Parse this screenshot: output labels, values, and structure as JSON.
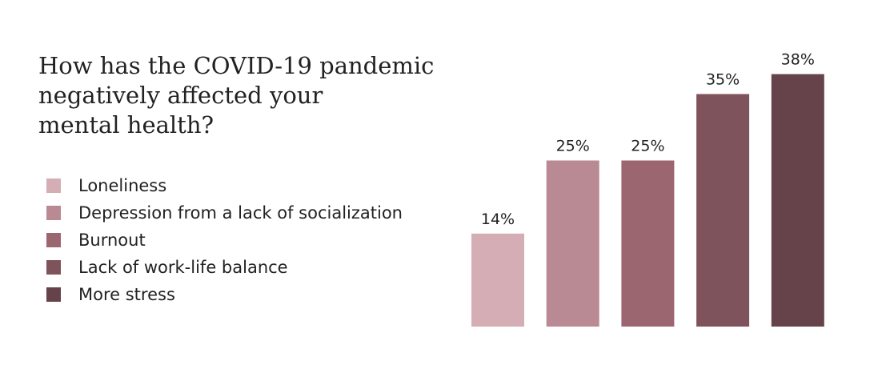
{
  "chart_data": {
    "type": "bar",
    "title_lines": [
      "How has the COVID-19 pandemic",
      "negatively affected your",
      "mental health?"
    ],
    "categories": [
      "Loneliness",
      "Depression from a lack of socialization",
      "Burnout",
      "Lack of work-life balance",
      "More stress"
    ],
    "values": [
      14,
      25,
      25,
      35,
      38
    ],
    "value_labels": [
      "14%",
      "25%",
      "25%",
      "35%",
      "38%"
    ],
    "colors": [
      "#d4aeb4",
      "#b98a93",
      "#9c6670",
      "#7f535b",
      "#66424a"
    ],
    "ylim": [
      0,
      40
    ],
    "grid": false,
    "legend_position": "left"
  }
}
